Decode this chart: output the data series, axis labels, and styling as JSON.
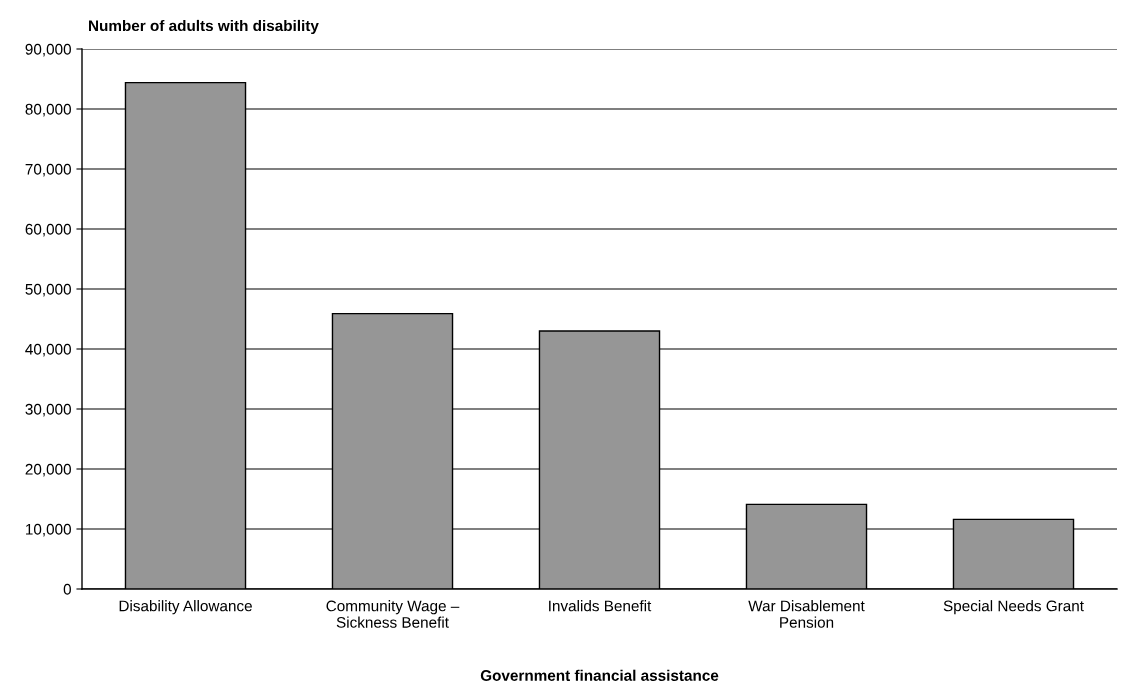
{
  "chart_data": {
    "type": "bar",
    "ylabel": "Number of adults with disability",
    "xlabel": "Government financial assistance",
    "categories": [
      "Disability Allowance",
      "Community Wage –\nSickness Benefit",
      "Invalids Benefit",
      "War Disablement\nPension",
      "Special Needs Grant"
    ],
    "values": [
      84400,
      45900,
      43000,
      14100,
      11600
    ],
    "color": "#969696",
    "ylim": [
      0,
      90000
    ],
    "yticks": [
      {
        "value": 0,
        "label": "0"
      },
      {
        "value": 10000,
        "label": "10,000"
      },
      {
        "value": 20000,
        "label": "20,000"
      },
      {
        "value": 30000,
        "label": "30,000"
      },
      {
        "value": 40000,
        "label": "40,000"
      },
      {
        "value": 50000,
        "label": "50,000"
      },
      {
        "value": 60000,
        "label": "60,000"
      },
      {
        "value": 70000,
        "label": "70,000"
      },
      {
        "value": 80000,
        "label": "80,000"
      },
      {
        "value": 90000,
        "label": "90,000"
      }
    ],
    "grid": "y",
    "legend": false
  }
}
